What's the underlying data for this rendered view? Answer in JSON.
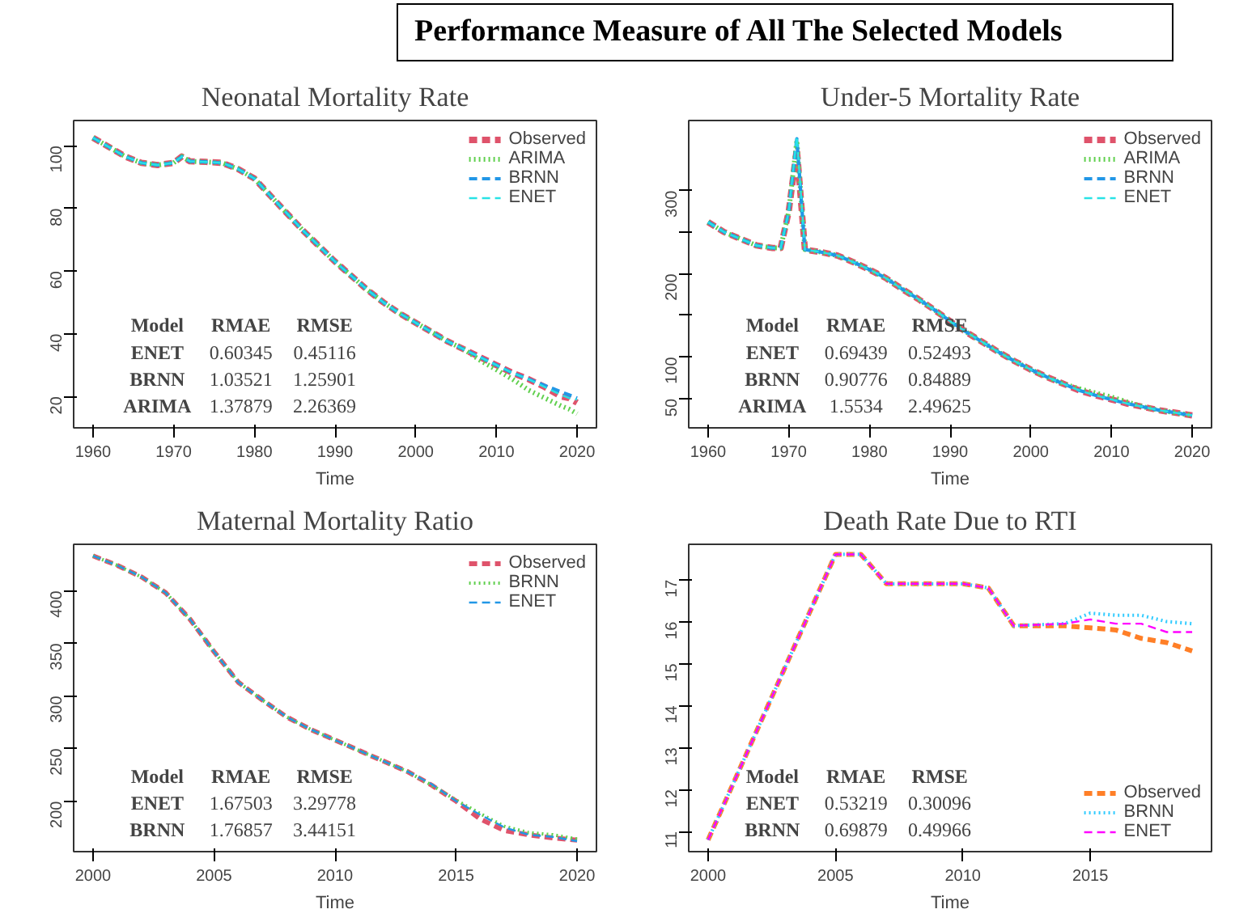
{
  "chart_data": [
    {
      "type": "other",
      "title": "Performance Measure of All The Selected Models"
    },
    {
      "type": "line",
      "title": "Neonatal Mortality Rate",
      "xlabel": "Time",
      "legend": "top right",
      "grid": false,
      "x": [
        1960,
        1962,
        1964,
        1966,
        1968,
        1970,
        1971,
        1972,
        1974,
        1976,
        1978,
        1980,
        1982,
        1984,
        1986,
        1988,
        1990,
        1992,
        1994,
        1996,
        1998,
        2000,
        2002,
        2004,
        2006,
        2008,
        2010,
        2012,
        2014,
        2016,
        2018,
        2019,
        2020
      ],
      "xlim": [
        1957.6,
        2022.4
      ],
      "xticks": [
        1960,
        1970,
        1980,
        1990,
        2000,
        2010,
        2020
      ],
      "ylim": [
        10,
        108
      ],
      "yticks": [
        20,
        40,
        60,
        80,
        100
      ],
      "series": [
        {
          "name": "Observed",
          "color": "#df536b",
          "line_style": "dashed",
          "values": [
            102.5,
            99.5,
            96.5,
            94.5,
            93.8,
            94.5,
            96.5,
            95,
            94.8,
            94.5,
            92.5,
            89.5,
            84,
            78.5,
            73,
            68,
            63,
            58.5,
            54,
            50,
            46.5,
            43.5,
            40.5,
            37.5,
            35,
            32.5,
            30,
            27.5,
            25.5,
            23,
            20,
            19.5,
            18
          ]
        },
        {
          "name": "ARIMA",
          "color": "#61d04f",
          "line_style": "dotted",
          "values": [
            102.5,
            99.5,
            96.5,
            94.5,
            93.8,
            94.5,
            96.5,
            95,
            94.8,
            94.5,
            92.5,
            89.5,
            84,
            78.5,
            73,
            68,
            63,
            58.5,
            54,
            50,
            46.5,
            43.5,
            40.5,
            37.5,
            35,
            31.5,
            28.5,
            25.5,
            22,
            19.5,
            17,
            16,
            14.5
          ]
        },
        {
          "name": "BRNN",
          "color": "#2297e6",
          "line_style": "dashed",
          "values": [
            102.5,
            99.5,
            96.5,
            94.5,
            93.8,
            94.5,
            96.5,
            95,
            94.8,
            94.5,
            92.5,
            89.5,
            84,
            78.5,
            73,
            68,
            63,
            58.5,
            54,
            50,
            46.5,
            43.5,
            40.5,
            37.5,
            35,
            32.5,
            30,
            27.5,
            25.5,
            23.5,
            21.5,
            20.5,
            19.5
          ]
        },
        {
          "name": "ENET",
          "color": "#28e2e5",
          "line_style": "dashed",
          "values": [
            102.5,
            99.5,
            96.5,
            94.5,
            93.8,
            94.5,
            96.5,
            95,
            94.8,
            94.5,
            92.5,
            89.5,
            84,
            78.5,
            73,
            68,
            63,
            58.5,
            54,
            50,
            46.5,
            43.5,
            40.5,
            37.5,
            35,
            32.5,
            30,
            27.5,
            25.5,
            23,
            20.5,
            19.5,
            19
          ]
        }
      ],
      "annotations": [
        "Model",
        "RMAE",
        "RMSE",
        "ENET",
        "0.60345",
        "0.45116",
        "BRNN",
        "1.03521",
        "1.25901",
        "ARIMA",
        "1.37879",
        "2.26369"
      ]
    },
    {
      "type": "line",
      "title": "Under-5 Mortality Rate",
      "xlabel": "Time",
      "legend": "top right",
      "grid": false,
      "x": [
        1960,
        1962,
        1964,
        1966,
        1968,
        1969,
        1970,
        1971,
        1972,
        1974,
        1976,
        1978,
        1980,
        1982,
        1984,
        1986,
        1988,
        1990,
        1992,
        1994,
        1996,
        1998,
        2000,
        2002,
        2004,
        2006,
        2008,
        2010,
        2012,
        2014,
        2016,
        2018,
        2020
      ],
      "xlim": [
        1957.6,
        2022.4
      ],
      "xticks": [
        1960,
        1970,
        1980,
        1990,
        2000,
        2010,
        2020
      ],
      "ylim": [
        15,
        384
      ],
      "yticks": [
        50,
        100,
        {
          "value": 150,
          "label": null
        },
        200,
        {
          "value": 250,
          "label": null
        },
        300
      ],
      "series": [
        {
          "name": "Observed",
          "color": "#df536b",
          "line_style": "dashed",
          "values": [
            262,
            250,
            242,
            234,
            231,
            231,
            275,
            350,
            229,
            226,
            222,
            214,
            205,
            195,
            182,
            170,
            157,
            143,
            130,
            118,
            106,
            95,
            85,
            76,
            68,
            60,
            54,
            49,
            44,
            40,
            36,
            33,
            30
          ]
        },
        {
          "name": "ARIMA",
          "color": "#61d04f",
          "line_style": "dotted",
          "values": [
            262,
            250,
            242,
            234,
            231,
            231,
            275,
            360,
            229,
            226,
            222,
            214,
            205,
            195,
            182,
            170,
            157,
            143,
            130,
            118,
            106,
            95,
            85,
            76,
            68,
            62,
            57,
            52,
            46,
            40,
            36,
            33,
            30
          ]
        },
        {
          "name": "BRNN",
          "color": "#2297e6",
          "line_style": "dashed",
          "values": [
            262,
            250,
            242,
            234,
            231,
            231,
            275,
            362,
            229,
            226,
            222,
            214,
            205,
            195,
            182,
            170,
            157,
            143,
            130,
            118,
            106,
            95,
            85,
            76,
            68,
            60,
            54,
            49,
            44,
            40,
            36,
            33,
            30
          ]
        },
        {
          "name": "ENET",
          "color": "#28e2e5",
          "line_style": "dashed",
          "values": [
            262,
            250,
            242,
            234,
            231,
            231,
            275,
            365,
            229,
            226,
            222,
            214,
            205,
            195,
            182,
            170,
            157,
            143,
            130,
            118,
            106,
            95,
            85,
            76,
            68,
            60,
            54,
            49,
            44,
            40,
            36,
            33,
            30
          ]
        }
      ],
      "annotations": [
        "Model",
        "RMAE",
        "RMSE",
        "ENET",
        "0.69439",
        "0.52493",
        "BRNN",
        "0.90776",
        "0.84889",
        "ARIMA",
        "1.5534",
        "2.49625"
      ]
    },
    {
      "type": "line",
      "title": "Maternal Mortality Ratio",
      "xlabel": "Time",
      "legend": "top right",
      "grid": false,
      "x": [
        2000,
        2001,
        2002,
        2003,
        2004,
        2005,
        2006,
        2007,
        2008,
        2009,
        2010,
        2011,
        2012,
        2013,
        2014,
        2015,
        2016,
        2017,
        2018,
        2019,
        2020
      ],
      "xlim": [
        1999.2,
        2020.8
      ],
      "xticks": [
        2000,
        2005,
        2010,
        2015,
        2020
      ],
      "ylim": [
        152,
        444
      ],
      "yticks": [
        200,
        250,
        300,
        350,
        400
      ],
      "series": [
        {
          "name": "Observed",
          "color": "#df536b",
          "line_style": "dashed",
          "values": [
            433,
            424,
            413,
            398,
            373,
            342,
            313,
            296,
            280,
            268,
            258,
            248,
            238,
            228,
            215,
            200,
            183,
            172,
            168,
            165,
            163
          ]
        },
        {
          "name": "BRNN",
          "color": "#61d04f",
          "line_style": "dotted",
          "values": [
            433,
            424,
            413,
            398,
            373,
            342,
            313,
            296,
            280,
            268,
            258,
            248,
            238,
            228,
            215,
            201,
            188,
            176,
            170,
            168,
            164
          ]
        },
        {
          "name": "ENET",
          "color": "#2297e6",
          "line_style": "dashed",
          "values": [
            433,
            424,
            413,
            398,
            373,
            342,
            313,
            296,
            280,
            268,
            258,
            248,
            238,
            228,
            216,
            200,
            187,
            175,
            168,
            166,
            162
          ]
        }
      ],
      "annotations": [
        "Model",
        "RMAE",
        "RMSE",
        "ENET",
        "1.67503",
        "3.29778",
        "BRNN",
        "1.76857",
        "3.44151"
      ]
    },
    {
      "type": "line",
      "title": "Death Rate Due to RTI",
      "xlabel": "Time",
      "legend": "bottom right",
      "grid": false,
      "x": [
        2000,
        2005,
        2006,
        2007,
        2010,
        2011,
        2012,
        2014,
        2015,
        2016,
        2017,
        2018,
        2019
      ],
      "xlim": [
        1999.24,
        2019.76
      ],
      "xticks": [
        2000,
        2005,
        2010,
        2015
      ],
      "ylim": [
        10.52,
        17.84
      ],
      "yticks": [
        11,
        12,
        13,
        14,
        15,
        16,
        17
      ],
      "series": [
        {
          "name": "Observed",
          "color": "#ff7f27",
          "line_style": "dashed",
          "values": [
            10.8,
            17.6,
            17.6,
            16.9,
            16.9,
            16.8,
            15.9,
            15.9,
            15.85,
            15.8,
            15.6,
            15.5,
            15.3
          ]
        },
        {
          "name": "BRNN",
          "color": "#33ccff",
          "line_style": "dotted",
          "values": [
            10.8,
            17.6,
            17.6,
            16.9,
            16.9,
            16.8,
            15.9,
            15.95,
            16.2,
            16.15,
            16.15,
            16.0,
            15.95
          ]
        },
        {
          "name": "ENET",
          "color": "#ff00ff",
          "line_style": "dashed",
          "values": [
            10.8,
            17.6,
            17.6,
            16.9,
            16.9,
            16.8,
            15.9,
            15.95,
            16.05,
            15.95,
            15.95,
            15.75,
            15.75
          ]
        }
      ],
      "annotations": [
        "Model",
        "RMAE",
        "RMSE",
        "ENET",
        "0.53219",
        "0.30096",
        "BRNN",
        "0.69879",
        "0.49966"
      ]
    }
  ]
}
